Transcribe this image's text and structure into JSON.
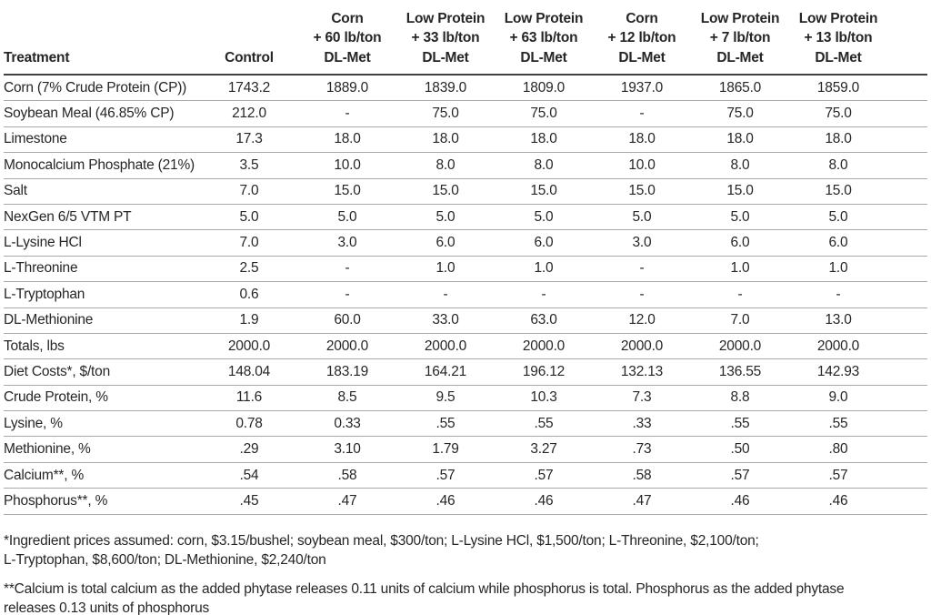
{
  "table": {
    "header": {
      "treatment_label": "Treatment",
      "cols": [
        {
          "lines": [
            "Control"
          ]
        },
        {
          "lines": [
            "Corn",
            "+ 60 lb/ton",
            "DL-Met"
          ]
        },
        {
          "lines": [
            "Low Protein",
            "+ 33 lb/ton",
            "DL-Met"
          ]
        },
        {
          "lines": [
            "Low Protein",
            "+ 63 lb/ton",
            "DL-Met"
          ]
        },
        {
          "lines": [
            "Corn",
            "+ 12 lb/ton",
            "DL-Met"
          ]
        },
        {
          "lines": [
            "Low Protein",
            "+ 7 lb/ton",
            "DL-Met"
          ]
        },
        {
          "lines": [
            "Low Protein",
            "+ 13 lb/ton",
            "DL-Met"
          ]
        }
      ]
    },
    "rows": [
      {
        "label": "Corn (7% Crude Protein (CP))",
        "values": [
          "1743.2",
          "1889.0",
          "1839.0",
          "1809.0",
          "1937.0",
          "1865.0",
          "1859.0"
        ]
      },
      {
        "label": "Soybean Meal (46.85% CP)",
        "values": [
          "212.0",
          "-",
          "75.0",
          "75.0",
          "-",
          "75.0",
          "75.0"
        ]
      },
      {
        "label": "Limestone",
        "values": [
          "17.3",
          "18.0",
          "18.0",
          "18.0",
          "18.0",
          "18.0",
          "18.0"
        ]
      },
      {
        "label": "Monocalcium Phosphate (21%)",
        "values": [
          "3.5",
          "10.0",
          "8.0",
          "8.0",
          "10.0",
          "8.0",
          "8.0"
        ]
      },
      {
        "label": "Salt",
        "values": [
          "7.0",
          "15.0",
          "15.0",
          "15.0",
          "15.0",
          "15.0",
          "15.0"
        ]
      },
      {
        "label": "NexGen 6/5 VTM PT",
        "values": [
          "5.0",
          "5.0",
          "5.0",
          "5.0",
          "5.0",
          "5.0",
          "5.0"
        ]
      },
      {
        "label": "L-Lysine HCl",
        "values": [
          "7.0",
          "3.0",
          "6.0",
          "6.0",
          "3.0",
          "6.0",
          "6.0"
        ]
      },
      {
        "label": "L-Threonine",
        "values": [
          "2.5",
          "-",
          "1.0",
          "1.0",
          "-",
          "1.0",
          "1.0"
        ]
      },
      {
        "label": "L-Tryptophan",
        "values": [
          "0.6",
          "-",
          "-",
          "-",
          "-",
          "-",
          "-"
        ]
      },
      {
        "label": "DL-Methionine",
        "values": [
          "1.9",
          "60.0",
          "33.0",
          "63.0",
          "12.0",
          "7.0",
          "13.0"
        ]
      },
      {
        "label": "Totals, lbs",
        "values": [
          "2000.0",
          "2000.0",
          "2000.0",
          "2000.0",
          "2000.0",
          "2000.0",
          "2000.0"
        ]
      },
      {
        "label": "Diet Costs*, $/ton",
        "values": [
          "148.04",
          "183.19",
          "164.21",
          "196.12",
          "132.13",
          "136.55",
          "142.93"
        ]
      },
      {
        "label": "Crude Protein, %",
        "values": [
          "11.6",
          "8.5",
          "9.5",
          "10.3",
          "7.3",
          "8.8",
          "9.0"
        ]
      },
      {
        "label": "Lysine, %",
        "values": [
          "0.78",
          "0.33",
          ".55",
          ".55",
          ".33",
          ".55",
          ".55"
        ]
      },
      {
        "label": "Methionine, %",
        "values": [
          ".29",
          "3.10",
          "1.79",
          "3.27",
          ".73",
          ".50",
          ".80"
        ]
      },
      {
        "label": "Calcium**, %",
        "values": [
          ".54",
          ".58",
          ".57",
          ".57",
          ".58",
          ".57",
          ".57"
        ]
      },
      {
        "label": "Phosphorus**, %",
        "values": [
          ".45",
          ".47",
          ".46",
          ".46",
          ".47",
          ".46",
          ".46"
        ]
      }
    ]
  },
  "footnotes": {
    "note1": {
      "line1": "*Ingredient prices assumed: corn, $3.15/bushel; soybean meal, $300/ton; L-Lysine HCl, $1,500/ton; L-Threonine, $2,100/ton;",
      "line2": "L-Tryptophan, $8,600/ton; DL-Methionine, $2,240/ton"
    },
    "note2": {
      "line1": "**Calcium is total calcium as the added phytase releases 0.11 units of calcium while phosphorus is total. Phosphorus as the added phytase",
      "line2": "releases 0.13 units of phosphorus"
    }
  },
  "colors": {
    "text": "#262626",
    "row_rule": "#a9a9a9",
    "header_rule": "#414141",
    "background": "#ffffff"
  }
}
